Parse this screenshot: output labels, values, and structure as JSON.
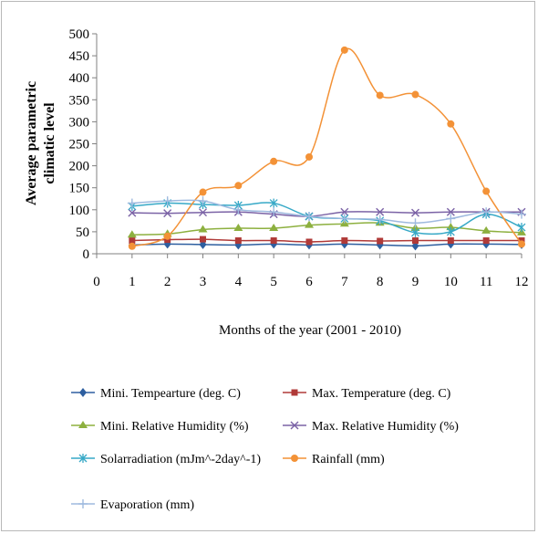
{
  "chart_data": {
    "type": "line",
    "title": "",
    "xlabel": "Months of the year (2001 - 2010)",
    "ylabel_lines": [
      "Average parametric",
      "climatic level"
    ],
    "xlim": [
      0,
      12
    ],
    "ylim": [
      0,
      500
    ],
    "x_ticks": [
      0,
      1,
      2,
      3,
      4,
      5,
      6,
      7,
      8,
      9,
      10,
      11,
      12
    ],
    "y_ticks": [
      0,
      50,
      100,
      150,
      200,
      250,
      300,
      350,
      400,
      450,
      500
    ],
    "x": [
      1,
      2,
      3,
      4,
      5,
      6,
      7,
      8,
      9,
      10,
      11,
      12
    ],
    "grid": false,
    "legend_position": "bottom",
    "series": [
      {
        "name": "Mini. Tempearture (deg. C)",
        "color": "#2e5fa0",
        "marker": "diamond",
        "values": [
          20,
          22,
          21,
          20,
          22,
          20,
          22,
          20,
          18,
          22,
          22,
          21
        ]
      },
      {
        "name": "Max. Temperature (deg. C)",
        "color": "#b03a38",
        "marker": "square",
        "values": [
          30,
          32,
          33,
          30,
          30,
          27,
          30,
          29,
          30,
          30,
          30,
          30
        ]
      },
      {
        "name": "Mini. Relative Humidity (%)",
        "color": "#8db03f",
        "marker": "triangle",
        "values": [
          43,
          45,
          55,
          58,
          58,
          65,
          68,
          70,
          58,
          60,
          52,
          48
        ]
      },
      {
        "name": "Max. Relative Humidity (%)",
        "color": "#7b63a6",
        "marker": "x",
        "values": [
          93,
          92,
          94,
          95,
          90,
          85,
          95,
          95,
          93,
          95,
          95,
          95
        ]
      },
      {
        "name": "Solarradiation (mJm^-2day^-1)",
        "color": "#37a9c7",
        "marker": "star",
        "values": [
          108,
          115,
          112,
          110,
          115,
          85,
          80,
          75,
          48,
          50,
          90,
          60
        ]
      },
      {
        "name": "Rainfall (mm)",
        "color": "#f39237",
        "marker": "circle",
        "values": [
          17,
          40,
          140,
          155,
          210,
          220,
          463,
          360,
          362,
          295,
          142,
          22
        ]
      },
      {
        "name": "Evaporation (mm)",
        "color": "#9fbadf",
        "marker": "plus",
        "values": [
          115,
          120,
          120,
          100,
          95,
          85,
          80,
          78,
          70,
          80,
          95,
          90
        ]
      }
    ]
  }
}
